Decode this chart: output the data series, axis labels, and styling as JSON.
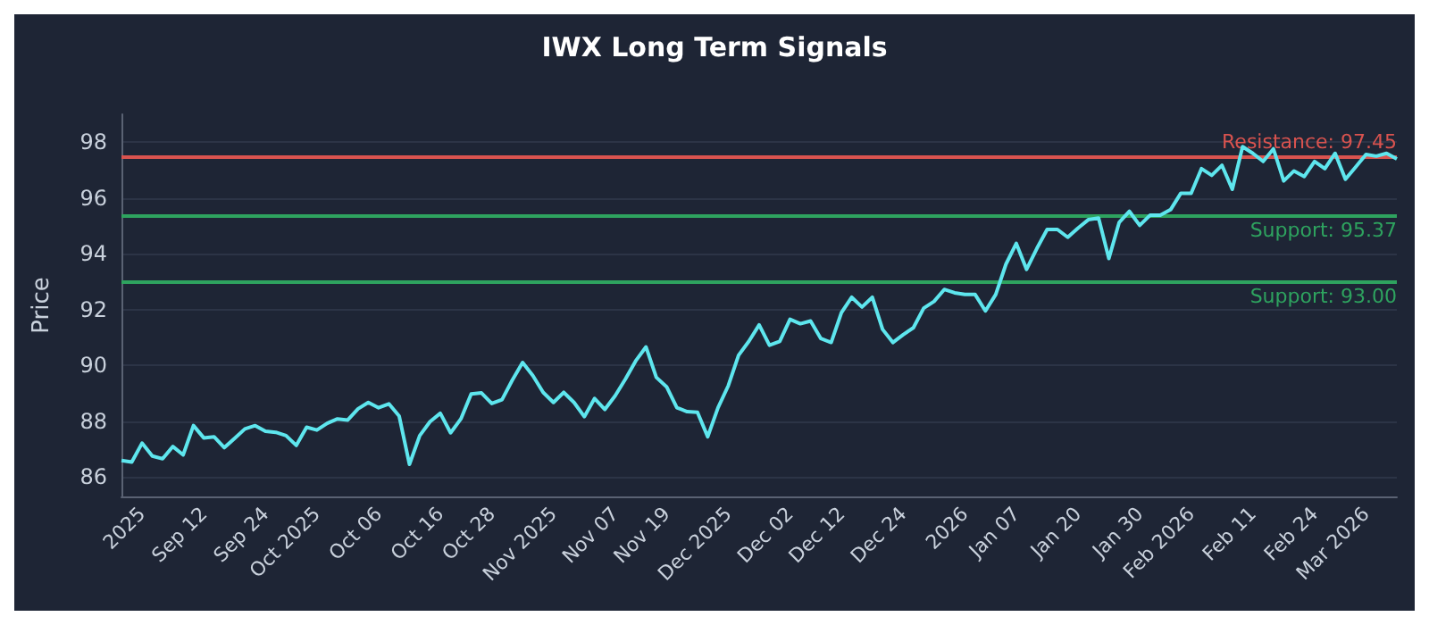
{
  "chart_data": {
    "type": "line",
    "title": "IWX Long Term Signals",
    "ylabel": "Price",
    "categories": [
      null,
      null,
      "2025",
      null,
      null,
      null,
      null,
      null,
      "Sep 12",
      null,
      null,
      null,
      null,
      null,
      "Sep 24",
      null,
      null,
      null,
      null,
      "Oct 2025",
      null,
      null,
      null,
      null,
      null,
      "Oct 06",
      null,
      null,
      null,
      null,
      null,
      "Oct 16",
      null,
      null,
      null,
      null,
      "Oct 28",
      null,
      null,
      null,
      null,
      null,
      "Nov 2025",
      null,
      null,
      null,
      null,
      null,
      "Nov 07",
      null,
      null,
      null,
      null,
      "Nov 19",
      null,
      null,
      null,
      null,
      null,
      "Dec 2025",
      null,
      null,
      null,
      null,
      null,
      "Dec 02",
      null,
      null,
      null,
      null,
      "Dec 12",
      null,
      null,
      null,
      null,
      null,
      "Dec 24",
      null,
      null,
      null,
      null,
      null,
      "2026",
      null,
      null,
      null,
      null,
      "Jan 07",
      null,
      null,
      null,
      null,
      null,
      "Jan 20",
      null,
      null,
      null,
      null,
      null,
      "Jan 30",
      null,
      null,
      null,
      null,
      "Feb 2026",
      null,
      null,
      null,
      null,
      null,
      "Feb 11",
      null,
      null,
      null,
      null,
      null,
      "Feb 24",
      null,
      null,
      null,
      null,
      "Mar 2026",
      null,
      null,
      null
    ],
    "series": [
      {
        "color": "#5ee6ee",
        "values": [
          86.59,
          86.53,
          87.21,
          86.75,
          86.65,
          87.09,
          86.79,
          87.84,
          87.4,
          87.44,
          87.05,
          87.38,
          87.72,
          87.84,
          87.64,
          87.6,
          87.48,
          87.13,
          87.78,
          87.68,
          87.92,
          88.08,
          88.04,
          88.44,
          88.67,
          88.48,
          88.62,
          88.18,
          86.45,
          87.48,
          87.98,
          88.28,
          87.58,
          88.08,
          88.97,
          89.01,
          88.63,
          88.77,
          89.47,
          90.1,
          89.63,
          89.03,
          88.67,
          89.03,
          88.67,
          88.16,
          88.81,
          88.42,
          88.91,
          89.51,
          90.16,
          90.66,
          89.57,
          89.23,
          88.48,
          88.34,
          88.32,
          87.44,
          88.48,
          89.27,
          90.36,
          90.86,
          91.45,
          90.72,
          90.86,
          91.65,
          91.49,
          91.59,
          90.96,
          90.82,
          91.89,
          92.44,
          92.09,
          92.44,
          91.29,
          90.82,
          91.1,
          91.35,
          92.05,
          92.29,
          92.72,
          92.6,
          92.54,
          92.54,
          91.95,
          92.54,
          93.63,
          94.37,
          93.44,
          94.19,
          94.87,
          94.87,
          94.59,
          94.92,
          95.22,
          95.28,
          93.83,
          95.12,
          95.52,
          95.02,
          95.38,
          95.38,
          95.58,
          96.17,
          96.17,
          97.05,
          96.81,
          97.17,
          96.31,
          97.84,
          97.6,
          97.31,
          97.76,
          96.61,
          96.97,
          96.77,
          97.31,
          97.05,
          97.6,
          96.67,
          97.11,
          97.56,
          97.5,
          97.6,
          97.4
        ]
      }
    ],
    "ylim": [
      85.3,
      99
    ],
    "yticks": [
      86,
      88,
      90,
      92,
      94,
      96,
      98
    ],
    "grid": "y",
    "ref_lines": [
      {
        "axis": "y",
        "value": 97.45,
        "label": "Resistance: 97.45",
        "color": "#d9534f"
      },
      {
        "axis": "y",
        "value": 95.37,
        "label": "Support: 95.37",
        "color": "#2ea35f"
      },
      {
        "axis": "y",
        "value": 93.0,
        "label": "Support: 93.00",
        "color": "#2ea35f"
      }
    ]
  }
}
